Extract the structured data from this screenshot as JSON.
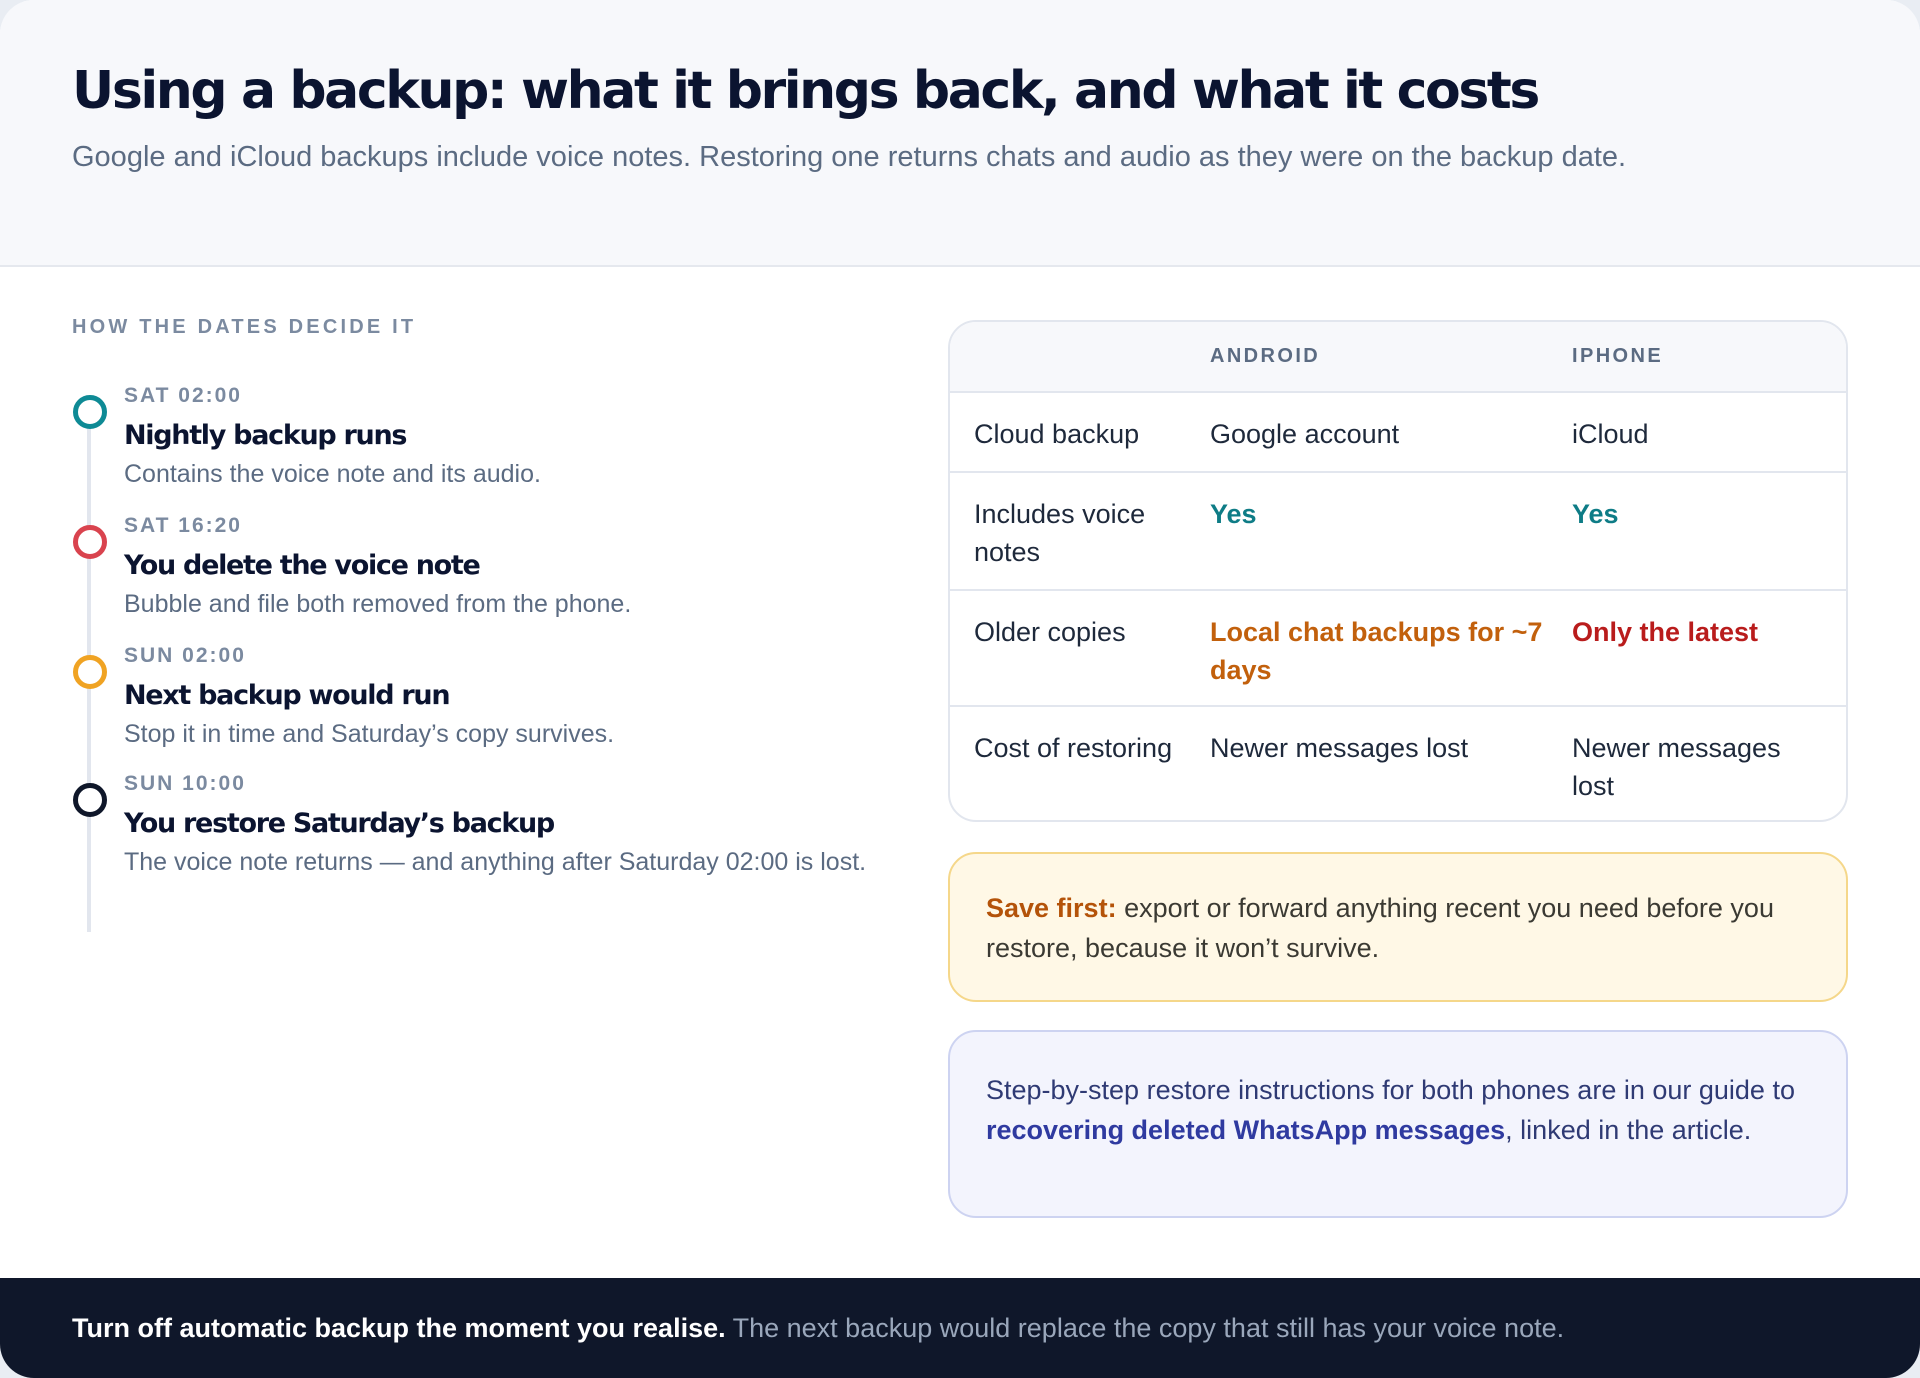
{
  "header": {
    "title": "Using a backup: what it brings back, and what it costs",
    "subtitle": "Google and iCloud backups include voice notes. Restoring one returns chats and audio as they were on the backup date."
  },
  "timeline": {
    "label": "HOW THE DATES DECIDE IT",
    "items": [
      {
        "time": "SAT 02:00",
        "title": "Nightly backup runs",
        "desc": "Contains the voice note and its audio.",
        "color": "#0e8a95"
      },
      {
        "time": "SAT 16:20",
        "title": "You delete the voice note",
        "desc": "Bubble and file both removed from the phone.",
        "color": "#d9434e"
      },
      {
        "time": "SUN 02:00",
        "title": "Next backup would run",
        "desc": "Stop it in time and Saturday’s copy survives.",
        "color": "#f0a323"
      },
      {
        "time": "SUN 10:00",
        "title": "You restore Saturday’s backup",
        "desc": "The voice note returns — and anything after Saturday 02:00 is lost.",
        "color": "#0f172a"
      }
    ]
  },
  "table": {
    "headers": [
      "",
      "ANDROID",
      "IPHONE"
    ],
    "rows": [
      {
        "label": "Cloud backup",
        "android": "Google account",
        "iphone": "iCloud"
      },
      {
        "label": "Includes voice notes",
        "android": "Yes",
        "iphone": "Yes"
      },
      {
        "label": "Older copies",
        "android": "Local chat backups for ~7 days",
        "iphone": "Only the latest"
      },
      {
        "label": "Cost of restoring",
        "android": "Newer messages lost",
        "iphone": "Newer messages lost"
      }
    ]
  },
  "callouts": {
    "save": {
      "strong": "Save first:",
      "text": " export or forward anything recent you need before you restore, because it won’t survive."
    },
    "guide": {
      "before": "Step-by-step restore instructions for both phones are in our guide to ",
      "link": "recovering deleted WhatsApp messages",
      "after": ", linked in the article."
    }
  },
  "footer": {
    "strong": "Turn off automatic backup the moment you realise.",
    "text": " The next backup would replace the copy that still has your voice note."
  }
}
